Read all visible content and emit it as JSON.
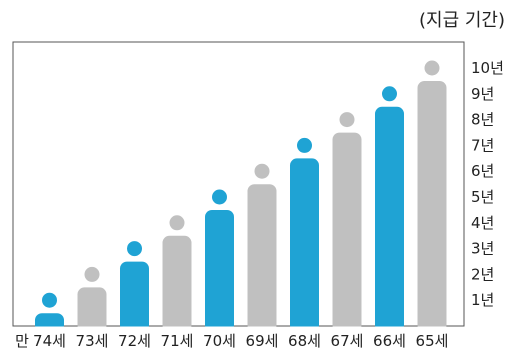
{
  "chart_data": {
    "type": "bar",
    "unit_label": "(지급 기간)",
    "x_prefix": "만",
    "categories": [
      "74세",
      "73세",
      "72세",
      "71세",
      "70세",
      "69세",
      "68세",
      "67세",
      "66세",
      "65세"
    ],
    "values": [
      1,
      2,
      3,
      4,
      5,
      6,
      7,
      8,
      9,
      10
    ],
    "highlight": [
      true,
      false,
      true,
      false,
      true,
      false,
      true,
      false,
      true,
      false
    ],
    "y_ticks": [
      "1년",
      "2년",
      "3년",
      "4년",
      "5년",
      "6년",
      "7년",
      "8년",
      "9년",
      "10년"
    ],
    "ylim": [
      0,
      10
    ],
    "colors": {
      "highlight": "#1fa3d4",
      "normal": "#c0c0c0",
      "frame": "#555555"
    }
  }
}
